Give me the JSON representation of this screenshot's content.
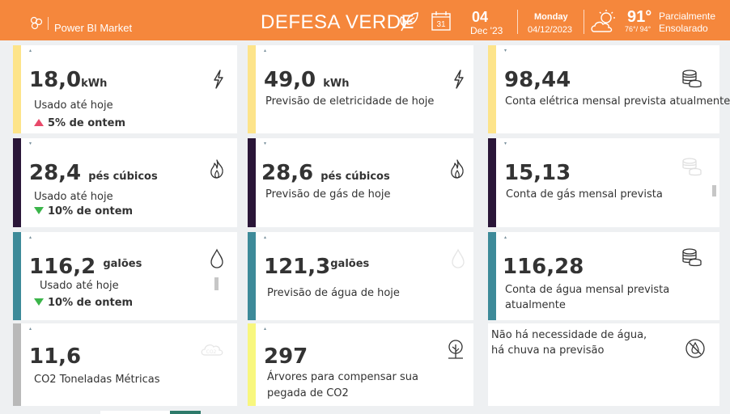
{
  "header": {
    "brand": "Power BI Market",
    "title": "DEFESA VERDE",
    "calendar_icon_text": "31",
    "day": "04",
    "month_year": "Dec '23",
    "weekday": "Monday",
    "full_date": "04/12/2023",
    "temperature": "91°",
    "temp_range": "76°/ 94°",
    "condition_line1": "Parcialmente",
    "condition_line2": "Ensolarado"
  },
  "colors": {
    "header": "#f5873c",
    "electric": "#fde48a",
    "gas": "#2a1638",
    "water": "#3d8a99",
    "co2": "#b9b9b9",
    "trees": "#f8f77e",
    "up": "#e8496a",
    "down": "#3bb54a"
  },
  "cards": {
    "elec_used": {
      "tick": "▴",
      "value": "18,0",
      "unit": "kWh",
      "label": "Usado até hoje",
      "delta": "5% de ontem",
      "direction": "up",
      "icon": "lightning-icon"
    },
    "elec_forecast": {
      "tick": "▴",
      "value": "49,0",
      "unit": "kWh",
      "label": "Previsão de eletricidade de hoje",
      "icon": "lightning-icon"
    },
    "elec_bill": {
      "tick": "▾",
      "value": "98,44",
      "label": "Conta elétrica mensal prevista atualmente",
      "icon": "coins-icon"
    },
    "gas_used": {
      "tick": "▾",
      "value": "28,4",
      "unit": "pés cúbicos",
      "label": "Usado até hoje",
      "delta": "10% de ontem",
      "direction": "down",
      "icon": "flame-icon"
    },
    "gas_forecast": {
      "tick": "▾",
      "value": "28,6",
      "unit": "pés cúbicos",
      "label": "Previsão de gás de hoje",
      "icon": "flame-icon"
    },
    "gas_bill": {
      "tick": "▾",
      "value": "15,13",
      "label": "Conta de gás mensal prevista",
      "icon": "coins-icon"
    },
    "water_used": {
      "tick": "▴",
      "value": "116,2",
      "unit": "galões",
      "label": "Usado até hoje",
      "delta": "10% de ontem",
      "direction": "down",
      "icon": "droplet-icon"
    },
    "water_forecast": {
      "tick": "▴",
      "value": "121,3",
      "unit": "galões",
      "label": "Previsão de água de hoje",
      "icon": "droplet-icon"
    },
    "water_bill": {
      "tick": "▴",
      "value": "116,28",
      "label": "Conta de água mensal prevista",
      "label2": "atualmente",
      "icon": "coins-icon"
    },
    "co2": {
      "tick": "▴",
      "value": "11,6",
      "label": "CO2 Toneladas Métricas",
      "icon": "co2-cloud-icon"
    },
    "trees": {
      "tick": "▴",
      "value": "297",
      "label": "Árvores para compensar sua",
      "label2": "pegada de CO2",
      "icon": "tree-icon"
    },
    "rain": {
      "label": "Não há necessidade de água,",
      "label2": "há chuva na previsão",
      "icon": "no-water-icon"
    }
  }
}
